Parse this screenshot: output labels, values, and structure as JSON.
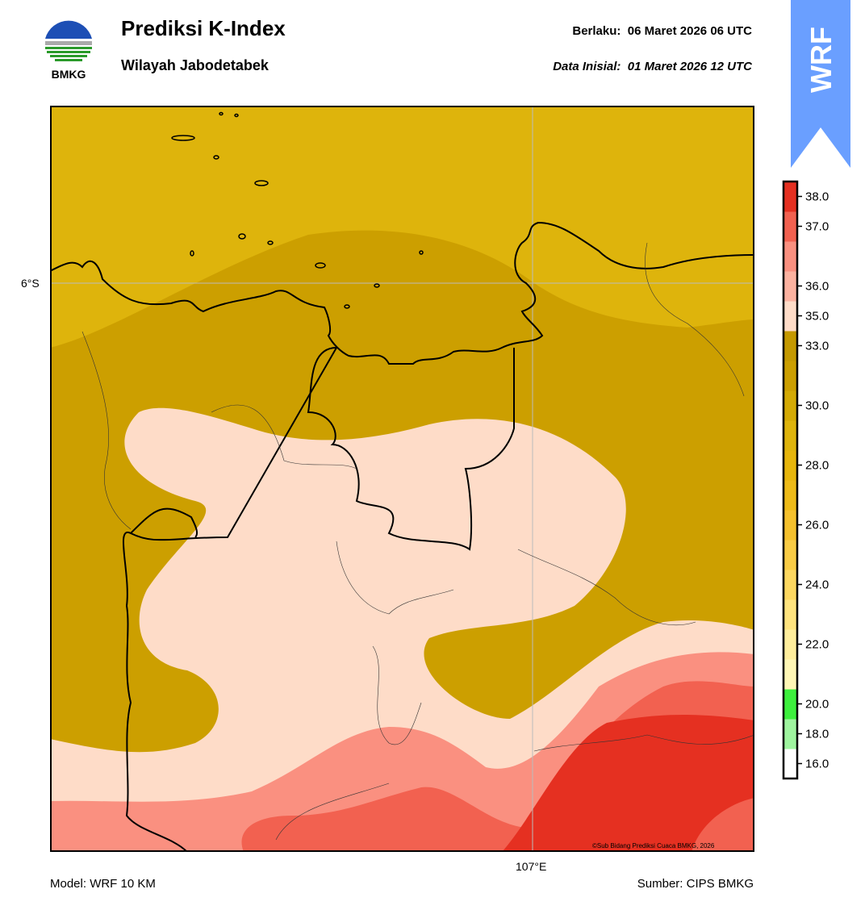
{
  "header": {
    "title": "Prediksi K-Index",
    "subtitle": "Wilayah Jabodetabek",
    "valid_label": "Berlaku:",
    "valid_value": "06 Maret 2026 06 UTC",
    "initial_label": "Data Inisial:",
    "initial_value": "01 Maret 2026 12 UTC"
  },
  "logo": {
    "text": "BMKG",
    "icon": "bmkg-logo-icon"
  },
  "badge": {
    "text": "WRF",
    "color": "#6a9fff"
  },
  "map": {
    "lat_label": "6°S",
    "lon_label": "107°E",
    "credit": "©Sub Bidang Prediksi Cuaca BMKG, 2026",
    "field_colors": {
      "30-33": "#deb40c",
      "33-35": "#cc9f00",
      "35-36": "#fedcc8",
      "36-37": "#fa9080",
      "37-38": "#f26150",
      "38+": "#e53021"
    }
  },
  "legend": {
    "levels": [
      {
        "label": "16.0",
        "color": "#ffffff"
      },
      {
        "label": "18.0",
        "color": "#9ff59f"
      },
      {
        "label": "20.0",
        "color": "#3df03d"
      },
      {
        "label": "",
        "color": "#fff7b6"
      },
      {
        "label": "22.0",
        "color": "#ffee9c"
      },
      {
        "label": "",
        "color": "#ffe47e"
      },
      {
        "label": "24.0",
        "color": "#fdd860"
      },
      {
        "label": "",
        "color": "#f9cc45"
      },
      {
        "label": "26.0",
        "color": "#f5c12d"
      },
      {
        "label": "",
        "color": "#eebb18"
      },
      {
        "label": "28.0",
        "color": "#e7b60c"
      },
      {
        "label": "",
        "color": "#deb40c"
      },
      {
        "label": "30.0",
        "color": "#d4aa04"
      },
      {
        "label": "",
        "color": "#cc9f00"
      },
      {
        "label": "33.0",
        "color": "#c49900"
      },
      {
        "label": "35.0",
        "color": "#fedcc8"
      },
      {
        "label": "36.0",
        "color": "#fcb2a0"
      },
      {
        "label": "",
        "color": "#fa9080"
      },
      {
        "label": "37.0",
        "color": "#f26150"
      },
      {
        "label": "38.0",
        "color": "#e53021"
      }
    ]
  },
  "footer": {
    "model": "Model: WRF 10 KM",
    "source": "Sumber: CIPS BMKG"
  }
}
